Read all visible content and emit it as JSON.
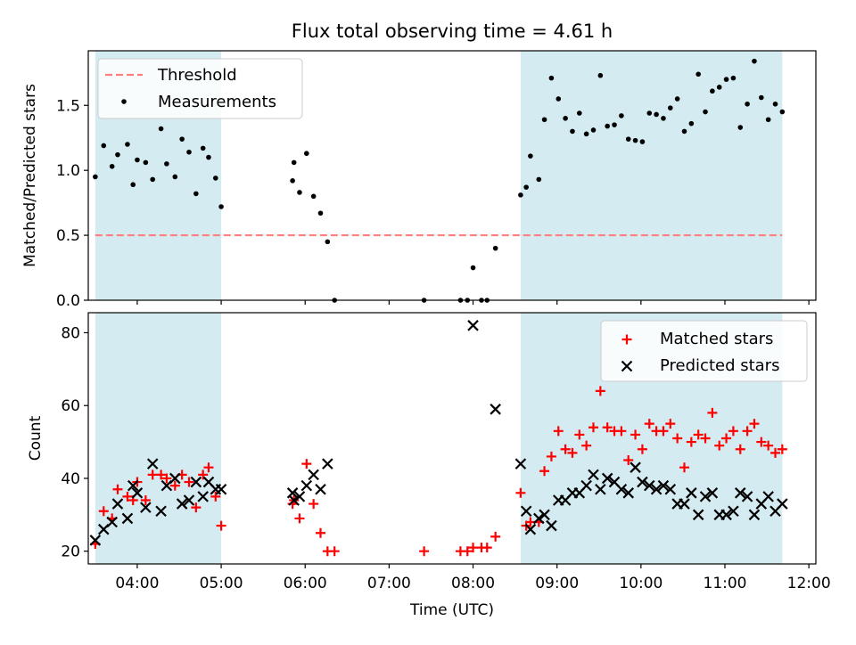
{
  "title": "Flux total observing time = 4.61 h",
  "chart_data": [
    {
      "type": "scatter",
      "ylabel": "Matched/Predicted stars",
      "xlim": [
        "03:25",
        "12:05"
      ],
      "ylim": [
        0,
        1.92
      ],
      "yticks": [
        0.0,
        0.5,
        1.0,
        1.5
      ],
      "ytick_labels": [
        "0.0",
        "0.5",
        "1.0",
        "1.5"
      ],
      "shaded_intervals": [
        [
          "03:30",
          "05:00"
        ],
        [
          "08:34",
          "11:41"
        ]
      ],
      "shade_color": "#add8e6",
      "threshold": {
        "name": "Threshold",
        "value": 0.5,
        "color": "#ff7f7f",
        "from": "03:30",
        "to": "11:41"
      },
      "legend": {
        "position": "upper-left",
        "entries": [
          "Threshold",
          "Measurements"
        ]
      },
      "series": [
        {
          "name": "Measurements",
          "color": "#000000",
          "points": [
            [
              "03:30",
              0.95
            ],
            [
              "03:36",
              1.19
            ],
            [
              "03:42",
              1.03
            ],
            [
              "03:46",
              1.12
            ],
            [
              "03:53",
              1.2
            ],
            [
              "03:57",
              0.89
            ],
            [
              "04:00",
              1.08
            ],
            [
              "04:06",
              1.06
            ],
            [
              "04:11",
              0.93
            ],
            [
              "04:17",
              1.32
            ],
            [
              "04:21",
              1.05
            ],
            [
              "04:27",
              0.95
            ],
            [
              "04:32",
              1.24
            ],
            [
              "04:37",
              1.14
            ],
            [
              "04:42",
              0.82
            ],
            [
              "04:47",
              1.17
            ],
            [
              "04:51",
              1.1
            ],
            [
              "04:56",
              0.94
            ],
            [
              "05:00",
              0.72
            ],
            [
              "05:51",
              0.92
            ],
            [
              "05:52",
              1.06
            ],
            [
              "05:56",
              0.83
            ],
            [
              "06:01",
              1.13
            ],
            [
              "06:06",
              0.8
            ],
            [
              "06:11",
              0.67
            ],
            [
              "06:16",
              0.45
            ],
            [
              "06:21",
              0.0
            ],
            [
              "07:25",
              0.0
            ],
            [
              "07:51",
              0.0
            ],
            [
              "07:56",
              0.0
            ],
            [
              "08:00",
              0.25
            ],
            [
              "08:06",
              0.0
            ],
            [
              "08:10",
              0.0
            ],
            [
              "08:16",
              0.4
            ],
            [
              "08:34",
              0.81
            ],
            [
              "08:38",
              0.87
            ],
            [
              "08:41",
              1.11
            ],
            [
              "08:47",
              0.93
            ],
            [
              "08:51",
              1.39
            ],
            [
              "08:56",
              1.71
            ],
            [
              "09:01",
              1.55
            ],
            [
              "09:06",
              1.4
            ],
            [
              "09:11",
              1.3
            ],
            [
              "09:16",
              1.44
            ],
            [
              "09:21",
              1.28
            ],
            [
              "09:26",
              1.31
            ],
            [
              "09:31",
              1.73
            ],
            [
              "09:36",
              1.34
            ],
            [
              "09:41",
              1.35
            ],
            [
              "09:46",
              1.42
            ],
            [
              "09:51",
              1.24
            ],
            [
              "09:56",
              1.23
            ],
            [
              "10:01",
              1.22
            ],
            [
              "10:06",
              1.44
            ],
            [
              "10:11",
              1.43
            ],
            [
              "10:16",
              1.4
            ],
            [
              "10:21",
              1.48
            ],
            [
              "10:26",
              1.55
            ],
            [
              "10:31",
              1.3
            ],
            [
              "10:36",
              1.36
            ],
            [
              "10:41",
              1.74
            ],
            [
              "10:46",
              1.45
            ],
            [
              "10:51",
              1.61
            ],
            [
              "10:56",
              1.64
            ],
            [
              "11:01",
              1.7
            ],
            [
              "11:06",
              1.71
            ],
            [
              "11:11",
              1.33
            ],
            [
              "11:16",
              1.51
            ],
            [
              "11:21",
              1.84
            ],
            [
              "11:26",
              1.56
            ],
            [
              "11:31",
              1.39
            ],
            [
              "11:36",
              1.51
            ],
            [
              "11:41",
              1.45
            ]
          ]
        }
      ]
    },
    {
      "type": "scatter",
      "xlabel": "Time (UTC)",
      "ylabel": "Count",
      "xlim": [
        "03:25",
        "12:05"
      ],
      "ylim": [
        16.5,
        85.5
      ],
      "yticks": [
        20,
        40,
        60,
        80
      ],
      "ytick_labels": [
        "20",
        "40",
        "60",
        "80"
      ],
      "xticks": [
        "04:00",
        "05:00",
        "06:00",
        "07:00",
        "08:00",
        "09:00",
        "10:00",
        "11:00",
        "12:00"
      ],
      "xtick_labels": [
        "04:00",
        "05:00",
        "06:00",
        "07:00",
        "08:00",
        "09:00",
        "10:00",
        "11:00",
        "12:00"
      ],
      "shaded_intervals": [
        [
          "03:30",
          "05:00"
        ],
        [
          "08:34",
          "11:41"
        ]
      ],
      "shade_color": "#add8e6",
      "legend": {
        "position": "upper-right",
        "entries": [
          "Matched stars",
          "Predicted stars"
        ]
      },
      "series": [
        {
          "name": "Matched stars",
          "marker": "+",
          "color": "#ff0000",
          "points": [
            [
              "03:30",
              22
            ],
            [
              "03:36",
              31
            ],
            [
              "03:42",
              29
            ],
            [
              "03:46",
              37
            ],
            [
              "03:53",
              35
            ],
            [
              "03:57",
              34
            ],
            [
              "04:00",
              39
            ],
            [
              "04:06",
              34
            ],
            [
              "04:11",
              41
            ],
            [
              "04:17",
              41
            ],
            [
              "04:21",
              40
            ],
            [
              "04:27",
              38
            ],
            [
              "04:32",
              41
            ],
            [
              "04:37",
              39
            ],
            [
              "04:42",
              32
            ],
            [
              "04:47",
              41
            ],
            [
              "04:51",
              43
            ],
            [
              "04:56",
              35
            ],
            [
              "05:00",
              27
            ],
            [
              "05:51",
              33
            ],
            [
              "05:52",
              34
            ],
            [
              "05:56",
              29
            ],
            [
              "06:01",
              44
            ],
            [
              "06:06",
              33
            ],
            [
              "06:11",
              25
            ],
            [
              "06:16",
              20
            ],
            [
              "06:21",
              20
            ],
            [
              "07:25",
              20
            ],
            [
              "07:51",
              20
            ],
            [
              "07:56",
              20
            ],
            [
              "08:00",
              21
            ],
            [
              "08:06",
              21
            ],
            [
              "08:10",
              21
            ],
            [
              "08:16",
              24
            ],
            [
              "08:34",
              36
            ],
            [
              "08:38",
              27
            ],
            [
              "08:41",
              28
            ],
            [
              "08:47",
              28
            ],
            [
              "08:51",
              42
            ],
            [
              "08:56",
              46
            ],
            [
              "09:01",
              53
            ],
            [
              "09:06",
              48
            ],
            [
              "09:11",
              47
            ],
            [
              "09:16",
              52
            ],
            [
              "09:21",
              49
            ],
            [
              "09:26",
              54
            ],
            [
              "09:31",
              64
            ],
            [
              "09:36",
              54
            ],
            [
              "09:41",
              53
            ],
            [
              "09:46",
              53
            ],
            [
              "09:51",
              45
            ],
            [
              "09:56",
              52
            ],
            [
              "10:01",
              48
            ],
            [
              "10:06",
              55
            ],
            [
              "10:11",
              53
            ],
            [
              "10:16",
              53
            ],
            [
              "10:21",
              55
            ],
            [
              "10:26",
              51
            ],
            [
              "10:31",
              43
            ],
            [
              "10:36",
              50
            ],
            [
              "10:41",
              52
            ],
            [
              "10:46",
              51
            ],
            [
              "10:51",
              58
            ],
            [
              "10:56",
              49
            ],
            [
              "11:01",
              51
            ],
            [
              "11:06",
              53
            ],
            [
              "11:11",
              48
            ],
            [
              "11:16",
              53
            ],
            [
              "11:21",
              55
            ],
            [
              "11:26",
              50
            ],
            [
              "11:31",
              49
            ],
            [
              "11:36",
              47
            ],
            [
              "11:41",
              48
            ]
          ]
        },
        {
          "name": "Predicted stars",
          "marker": "x",
          "color": "#000000",
          "points": [
            [
              "03:30",
              23
            ],
            [
              "03:36",
              26
            ],
            [
              "03:42",
              28
            ],
            [
              "03:46",
              33
            ],
            [
              "03:53",
              29
            ],
            [
              "03:57",
              38
            ],
            [
              "04:00",
              36
            ],
            [
              "04:06",
              32
            ],
            [
              "04:11",
              44
            ],
            [
              "04:17",
              31
            ],
            [
              "04:21",
              38
            ],
            [
              "04:27",
              40
            ],
            [
              "04:32",
              33
            ],
            [
              "04:37",
              34
            ],
            [
              "04:42",
              39
            ],
            [
              "04:47",
              35
            ],
            [
              "04:51",
              39
            ],
            [
              "04:56",
              37
            ],
            [
              "05:00",
              37
            ],
            [
              "05:51",
              36
            ],
            [
              "05:52",
              34
            ],
            [
              "05:56",
              35
            ],
            [
              "06:01",
              38
            ],
            [
              "06:06",
              41
            ],
            [
              "06:11",
              37
            ],
            [
              "06:16",
              44
            ],
            [
              "08:00",
              82
            ],
            [
              "08:16",
              59
            ],
            [
              "08:34",
              44
            ],
            [
              "08:38",
              31
            ],
            [
              "08:41",
              26
            ],
            [
              "08:47",
              29
            ],
            [
              "08:51",
              30
            ],
            [
              "08:56",
              27
            ],
            [
              "09:01",
              34
            ],
            [
              "09:06",
              34
            ],
            [
              "09:11",
              36
            ],
            [
              "09:16",
              36
            ],
            [
              "09:21",
              38
            ],
            [
              "09:26",
              41
            ],
            [
              "09:31",
              37
            ],
            [
              "09:36",
              40
            ],
            [
              "09:41",
              39
            ],
            [
              "09:46",
              37
            ],
            [
              "09:51",
              36
            ],
            [
              "09:56",
              43
            ],
            [
              "10:01",
              39
            ],
            [
              "10:06",
              38
            ],
            [
              "10:11",
              37
            ],
            [
              "10:16",
              38
            ],
            [
              "10:21",
              37
            ],
            [
              "10:26",
              33
            ],
            [
              "10:31",
              33
            ],
            [
              "10:36",
              36
            ],
            [
              "10:41",
              30
            ],
            [
              "10:46",
              35
            ],
            [
              "10:51",
              36
            ],
            [
              "10:56",
              30
            ],
            [
              "11:01",
              30
            ],
            [
              "11:06",
              31
            ],
            [
              "11:11",
              36
            ],
            [
              "11:16",
              35
            ],
            [
              "11:21",
              30
            ],
            [
              "11:26",
              33
            ],
            [
              "11:31",
              35
            ],
            [
              "11:36",
              31
            ],
            [
              "11:41",
              33
            ]
          ]
        }
      ]
    }
  ]
}
